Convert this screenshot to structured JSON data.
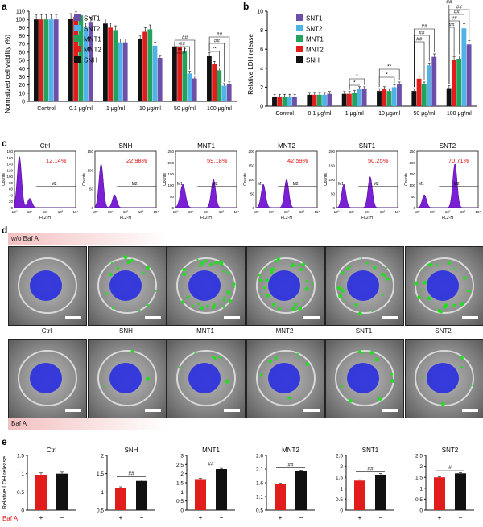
{
  "panels": {
    "a": {
      "letter": "a",
      "ylabel": "Normalized cell viability (%)",
      "yticks": [
        0,
        10,
        20,
        30,
        40,
        50,
        60,
        70,
        80,
        90,
        100,
        110
      ],
      "ylim": [
        0,
        110
      ],
      "categories": [
        "Control",
        "0.1 μg/ml",
        "1 μg/ml",
        "10 μg/ml",
        "50 μg/ml",
        "100 μg/ml"
      ],
      "legend": [
        "SNT1",
        "SNT2",
        "MNT1",
        "MNT2",
        "SNH"
      ],
      "sig": [
        "##",
        "##",
        "**",
        "##",
        "##",
        "**"
      ]
    },
    "b": {
      "letter": "b",
      "ylabel": "Relative LDH release",
      "yticks": [
        0,
        2,
        4,
        6,
        8,
        10
      ],
      "ylim": [
        0,
        10
      ],
      "categories": [
        "Control",
        "0.1 μg/ml",
        "1 μg/ml",
        "10 μg/ml",
        "50 μg/ml",
        "100 μg/ml"
      ],
      "legend": [
        "SNT1",
        "SNT2",
        "MNT1",
        "MNT2",
        "SNH"
      ],
      "sig": [
        "*",
        "*",
        "**",
        "*",
        "##",
        "##",
        "##",
        "##",
        "##",
        "##",
        "##",
        "##"
      ]
    },
    "c": {
      "letter": "c",
      "xlabel": "FL2-H",
      "ylabel": "Counts",
      "xticks": [
        "10⁰",
        "10¹",
        "10²",
        "10³",
        "10⁴"
      ],
      "gate": "M2",
      "gate1": "M1",
      "plots": [
        {
          "title": "Ctrl",
          "pct": "12.14%",
          "yticks": [
            "180",
            "160",
            "140",
            "120",
            "100",
            "80",
            "60",
            "40",
            "20",
            "0"
          ]
        },
        {
          "title": "SNH",
          "pct": "22.98%",
          "yticks": [
            "150",
            "100",
            "50",
            "0"
          ]
        },
        {
          "title": "MNT1",
          "pct": "59.18%",
          "yticks": [
            "250",
            "200",
            "150",
            "100",
            "50",
            "0"
          ]
        },
        {
          "title": "MNT2",
          "pct": "42.59%",
          "yticks": [
            "200",
            "150",
            "100",
            "50",
            "0"
          ]
        },
        {
          "title": "SNT1",
          "pct": "50.25%",
          "yticks": [
            "200",
            "150",
            "100",
            "50",
            "0"
          ]
        },
        {
          "title": "SNT2",
          "pct": "70.71%",
          "yticks": [
            "250",
            "200",
            "150",
            "100",
            "50",
            "0"
          ]
        }
      ]
    },
    "d": {
      "letter": "d",
      "banner_top": "w/o Baf A",
      "banner_bottom": "Baf A",
      "labels": [
        "Ctrl",
        "SNH",
        "MNT1",
        "MNT2",
        "SNT1",
        "SNT2"
      ]
    },
    "e": {
      "letter": "e",
      "ylabel": "Relative LDH release",
      "row_label": "Baf A",
      "plus": "+",
      "minus": "−",
      "plots": [
        {
          "title": "Ctrl",
          "yticks": [
            "0",
            "0.5",
            "1",
            "1.5"
          ],
          "sig": ""
        },
        {
          "title": "SNH",
          "yticks": [
            "0.5",
            "1",
            "1.5",
            "2"
          ],
          "sig": "##"
        },
        {
          "title": "MNT1",
          "yticks": [
            "0",
            "0.5",
            "1",
            "1.5",
            "2",
            "2.5",
            "3"
          ],
          "sig": "##"
        },
        {
          "title": "MNT2",
          "yticks": [
            "0.5",
            "1.1",
            "1.6",
            "2.1",
            "2.6"
          ],
          "sig": "##"
        },
        {
          "title": "SNT1",
          "yticks": [
            "0",
            "0.5",
            "1",
            "1.5",
            "2",
            "2.5"
          ],
          "sig": "##"
        },
        {
          "title": "SNT2",
          "yticks": [
            "0",
            "0.5",
            "1",
            "1.5",
            "2",
            "2.5"
          ],
          "sig": "#"
        }
      ]
    }
  },
  "chart_data": [
    {
      "type": "bar",
      "title": "",
      "ylabel": "Normalized cell viability (%)",
      "ylim": [
        0,
        110
      ],
      "categories": [
        "Control",
        "0.1 μg/ml",
        "1 μg/ml",
        "10 μg/ml",
        "50 μg/ml",
        "100 μg/ml"
      ],
      "series": [
        {
          "name": "SNH",
          "color": "#111111",
          "values": [
            100,
            101,
            95,
            76,
            67,
            56
          ]
        },
        {
          "name": "MNT2",
          "color": "#e21b1b",
          "values": [
            100,
            103,
            90,
            85,
            66,
            46
          ]
        },
        {
          "name": "MNT1",
          "color": "#22a25a",
          "values": [
            100,
            105,
            87,
            88,
            61,
            38
          ]
        },
        {
          "name": "SNT2",
          "color": "#4fb3e8",
          "values": [
            100,
            90,
            72,
            68,
            34,
            19
          ]
        },
        {
          "name": "SNT1",
          "color": "#6b4fa8",
          "values": [
            100,
            97,
            72,
            53,
            28,
            21
          ]
        }
      ]
    },
    {
      "type": "bar",
      "title": "",
      "ylabel": "Relative LDH release",
      "ylim": [
        0,
        10
      ],
      "categories": [
        "Control",
        "0.1 μg/ml",
        "1 μg/ml",
        "10 μg/ml",
        "50 μg/ml",
        "100 μg/ml"
      ],
      "series": [
        {
          "name": "SNH",
          "color": "#111111",
          "values": [
            1.0,
            1.2,
            1.3,
            1.6,
            1.6,
            1.9
          ]
        },
        {
          "name": "MNT2",
          "color": "#e21b1b",
          "values": [
            1.0,
            1.2,
            1.3,
            1.8,
            2.9,
            4.9
          ]
        },
        {
          "name": "MNT1",
          "color": "#22a25a",
          "values": [
            1.0,
            1.2,
            1.4,
            1.6,
            2.3,
            5.0
          ]
        },
        {
          "name": "SNT2",
          "color": "#4fb3e8",
          "values": [
            1.0,
            1.2,
            1.8,
            2.0,
            4.3,
            8.2
          ]
        },
        {
          "name": "SNT1",
          "color": "#6b4fa8",
          "values": [
            1.0,
            1.3,
            1.8,
            2.3,
            5.2,
            6.5
          ]
        }
      ]
    },
    {
      "type": "bar",
      "ylabel": "Relative LDH release",
      "groups": [
        {
          "title": "Ctrl",
          "ylim": [
            0,
            1.5
          ],
          "values": [
            0.97,
            1.0
          ],
          "errors": [
            0.05,
            0.04
          ]
        },
        {
          "title": "SNH",
          "ylim": [
            0.5,
            2
          ],
          "values": [
            1.1,
            1.3
          ],
          "errors": [
            0.04,
            0.03
          ]
        },
        {
          "title": "MNT1",
          "ylim": [
            0,
            3
          ],
          "values": [
            1.7,
            2.25
          ],
          "errors": [
            0.04,
            0.04
          ]
        },
        {
          "title": "MNT2",
          "ylim": [
            0.5,
            2.6
          ],
          "values": [
            1.5,
            2.0
          ],
          "errors": [
            0.03,
            0.03
          ]
        },
        {
          "title": "SNT1",
          "ylim": [
            0,
            2.5
          ],
          "values": [
            1.35,
            1.62
          ],
          "errors": [
            0.04,
            0.05
          ]
        },
        {
          "title": "SNT2",
          "ylim": [
            0,
            2.5
          ],
          "values": [
            1.5,
            1.68
          ],
          "errors": [
            0.03,
            0.03
          ]
        }
      ],
      "bar_colors": [
        "#e21b1b",
        "#111111"
      ]
    }
  ]
}
